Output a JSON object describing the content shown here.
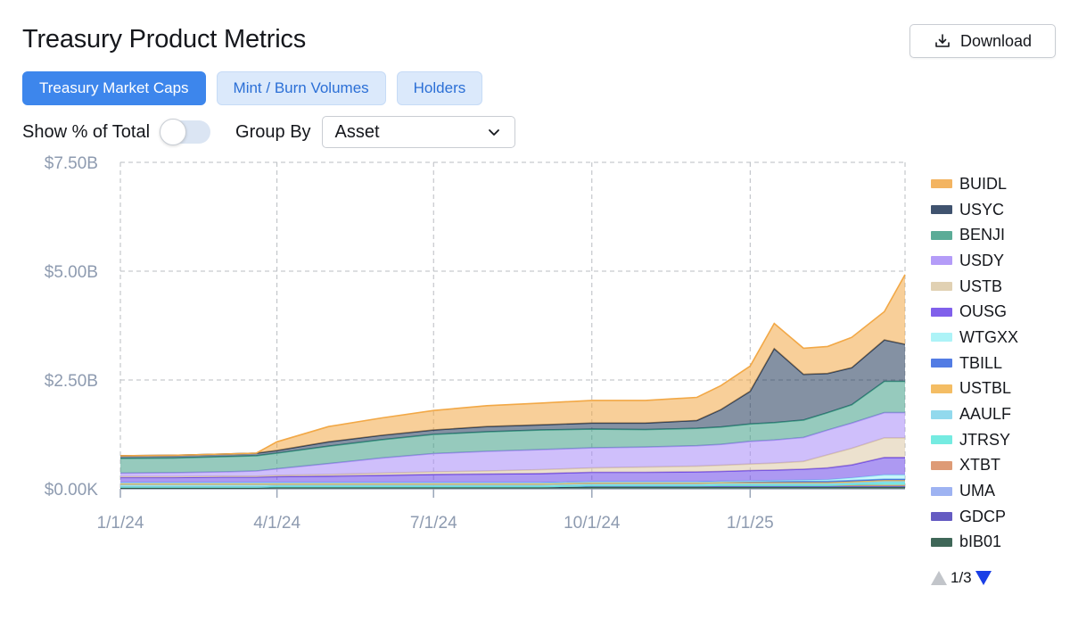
{
  "header": {
    "title": "Treasury Product Metrics",
    "download_label": "Download"
  },
  "tabs": [
    {
      "label": "Treasury Market Caps",
      "active": true
    },
    {
      "label": "Mint / Burn Volumes",
      "active": false
    },
    {
      "label": "Holders",
      "active": false
    }
  ],
  "controls": {
    "show_pct_label": "Show % of Total",
    "show_pct_on": false,
    "group_by_label": "Group By",
    "group_by_value": "Asset"
  },
  "pager": {
    "text": "1/3"
  },
  "chart_data": {
    "type": "area",
    "stacked": true,
    "title": "",
    "xlabel": "",
    "ylabel": "",
    "ylim": [
      0,
      7.5
    ],
    "y_unit": "billions USD",
    "y_ticks": [
      0,
      2.5,
      5,
      7.5
    ],
    "y_tick_labels": [
      "$0.00K",
      "$2.50B",
      "$5.00B",
      "$7.50B"
    ],
    "x_ticks": [
      "2024-01-01",
      "2024-04-01",
      "2024-07-01",
      "2024-10-01",
      "2025-01-01"
    ],
    "x_tick_labels": [
      "1/1/24",
      "4/1/24",
      "7/1/24",
      "10/1/24",
      "1/1/25"
    ],
    "x": [
      "2024-01-01",
      "2024-02-01",
      "2024-03-01",
      "2024-03-20",
      "2024-04-01",
      "2024-05-01",
      "2024-06-01",
      "2024-07-01",
      "2024-08-01",
      "2024-09-01",
      "2024-10-01",
      "2024-11-01",
      "2024-12-01",
      "2024-12-15",
      "2025-01-01",
      "2025-01-15",
      "2025-02-01",
      "2025-02-15",
      "2025-03-01",
      "2025-03-20",
      "2025-04-01"
    ],
    "series": [
      {
        "name": "bIB01",
        "color": "#1e4d3b",
        "values": [
          0.02,
          0.02,
          0.02,
          0.02,
          0.03,
          0.03,
          0.03,
          0.03,
          0.03,
          0.03,
          0.04,
          0.04,
          0.04,
          0.04,
          0.04,
          0.04,
          0.04,
          0.04,
          0.04,
          0.04,
          0.04
        ]
      },
      {
        "name": "GDCP",
        "color": "#4b3fb8",
        "values": [
          0.02,
          0.02,
          0.02,
          0.02,
          0.02,
          0.02,
          0.02,
          0.02,
          0.02,
          0.02,
          0.02,
          0.02,
          0.02,
          0.02,
          0.02,
          0.02,
          0.02,
          0.02,
          0.02,
          0.02,
          0.02
        ]
      },
      {
        "name": "UMA",
        "color": "#8ea6f0",
        "values": [
          0.0,
          0.0,
          0.0,
          0.0,
          0.0,
          0.0,
          0.0,
          0.0,
          0.0,
          0.0,
          0.01,
          0.01,
          0.01,
          0.01,
          0.01,
          0.01,
          0.01,
          0.01,
          0.01,
          0.01,
          0.01
        ]
      },
      {
        "name": "XTBT",
        "color": "#d98a5f",
        "values": [
          0.0,
          0.0,
          0.0,
          0.0,
          0.0,
          0.0,
          0.0,
          0.0,
          0.0,
          0.0,
          0.0,
          0.0,
          0.0,
          0.01,
          0.01,
          0.01,
          0.01,
          0.01,
          0.01,
          0.01,
          0.01
        ]
      },
      {
        "name": "JTRSY",
        "color": "#5ee8dc",
        "values": [
          0.0,
          0.0,
          0.0,
          0.0,
          0.0,
          0.0,
          0.0,
          0.0,
          0.0,
          0.0,
          0.0,
          0.0,
          0.0,
          0.0,
          0.0,
          0.0,
          0.0,
          0.0,
          0.02,
          0.05,
          0.05
        ]
      },
      {
        "name": "AAULF",
        "color": "#7fd3ea",
        "values": [
          0.05,
          0.05,
          0.05,
          0.05,
          0.04,
          0.04,
          0.04,
          0.04,
          0.04,
          0.04,
          0.04,
          0.04,
          0.04,
          0.04,
          0.04,
          0.04,
          0.04,
          0.04,
          0.04,
          0.04,
          0.04
        ]
      },
      {
        "name": "USTBL",
        "color": "#f3b24a",
        "values": [
          0.03,
          0.03,
          0.03,
          0.03,
          0.03,
          0.03,
          0.03,
          0.03,
          0.03,
          0.03,
          0.03,
          0.03,
          0.03,
          0.03,
          0.03,
          0.03,
          0.03,
          0.03,
          0.03,
          0.03,
          0.03
        ]
      },
      {
        "name": "TBILL",
        "color": "#3566e0",
        "values": [
          0.02,
          0.02,
          0.02,
          0.02,
          0.02,
          0.02,
          0.02,
          0.02,
          0.02,
          0.02,
          0.02,
          0.02,
          0.02,
          0.02,
          0.02,
          0.02,
          0.02,
          0.02,
          0.02,
          0.02,
          0.02
        ]
      },
      {
        "name": "WTGXX",
        "color": "#9ff2f6",
        "values": [
          0.0,
          0.0,
          0.0,
          0.0,
          0.0,
          0.0,
          0.0,
          0.0,
          0.0,
          0.0,
          0.0,
          0.0,
          0.0,
          0.0,
          0.01,
          0.02,
          0.03,
          0.04,
          0.06,
          0.1,
          0.1
        ]
      },
      {
        "name": "OUSG",
        "color": "#6a45e8",
        "values": [
          0.12,
          0.12,
          0.13,
          0.13,
          0.14,
          0.15,
          0.17,
          0.19,
          0.2,
          0.21,
          0.22,
          0.22,
          0.23,
          0.23,
          0.24,
          0.24,
          0.25,
          0.27,
          0.3,
          0.4,
          0.4
        ]
      },
      {
        "name": "USTB",
        "color": "#dcc9a6",
        "values": [
          0.02,
          0.02,
          0.02,
          0.02,
          0.03,
          0.04,
          0.05,
          0.06,
          0.07,
          0.09,
          0.1,
          0.12,
          0.13,
          0.14,
          0.15,
          0.16,
          0.18,
          0.3,
          0.38,
          0.45,
          0.45
        ]
      },
      {
        "name": "USDY",
        "color": "#a88bf7",
        "values": [
          0.08,
          0.09,
          0.1,
          0.12,
          0.15,
          0.25,
          0.35,
          0.42,
          0.45,
          0.46,
          0.46,
          0.46,
          0.47,
          0.48,
          0.52,
          0.53,
          0.55,
          0.57,
          0.58,
          0.58,
          0.58
        ]
      },
      {
        "name": "BENJI",
        "color": "#3f9e86",
        "values": [
          0.34,
          0.34,
          0.35,
          0.35,
          0.36,
          0.4,
          0.42,
          0.44,
          0.45,
          0.45,
          0.43,
          0.4,
          0.4,
          0.4,
          0.4,
          0.4,
          0.4,
          0.4,
          0.42,
          0.72,
          0.72
        ]
      },
      {
        "name": "USYC",
        "color": "#1f3657",
        "values": [
          0.06,
          0.06,
          0.06,
          0.06,
          0.06,
          0.1,
          0.1,
          0.1,
          0.12,
          0.12,
          0.14,
          0.15,
          0.18,
          0.4,
          0.75,
          1.7,
          1.05,
          0.9,
          0.85,
          0.95,
          0.85
        ]
      },
      {
        "name": "BUIDL",
        "color": "#f2a846",
        "values": [
          0.0,
          0.0,
          0.0,
          0.0,
          0.2,
          0.35,
          0.4,
          0.45,
          0.48,
          0.5,
          0.52,
          0.52,
          0.53,
          0.55,
          0.58,
          0.58,
          0.6,
          0.62,
          0.7,
          0.65,
          1.6
        ]
      }
    ],
    "legend_order": [
      "BUIDL",
      "USYC",
      "BENJI",
      "USDY",
      "USTB",
      "OUSG",
      "WTGXX",
      "TBILL",
      "USTBL",
      "AAULF",
      "JTRSY",
      "XTBT",
      "UMA",
      "GDCP",
      "bIB01"
    ],
    "legend_position": "right",
    "grid": true
  }
}
